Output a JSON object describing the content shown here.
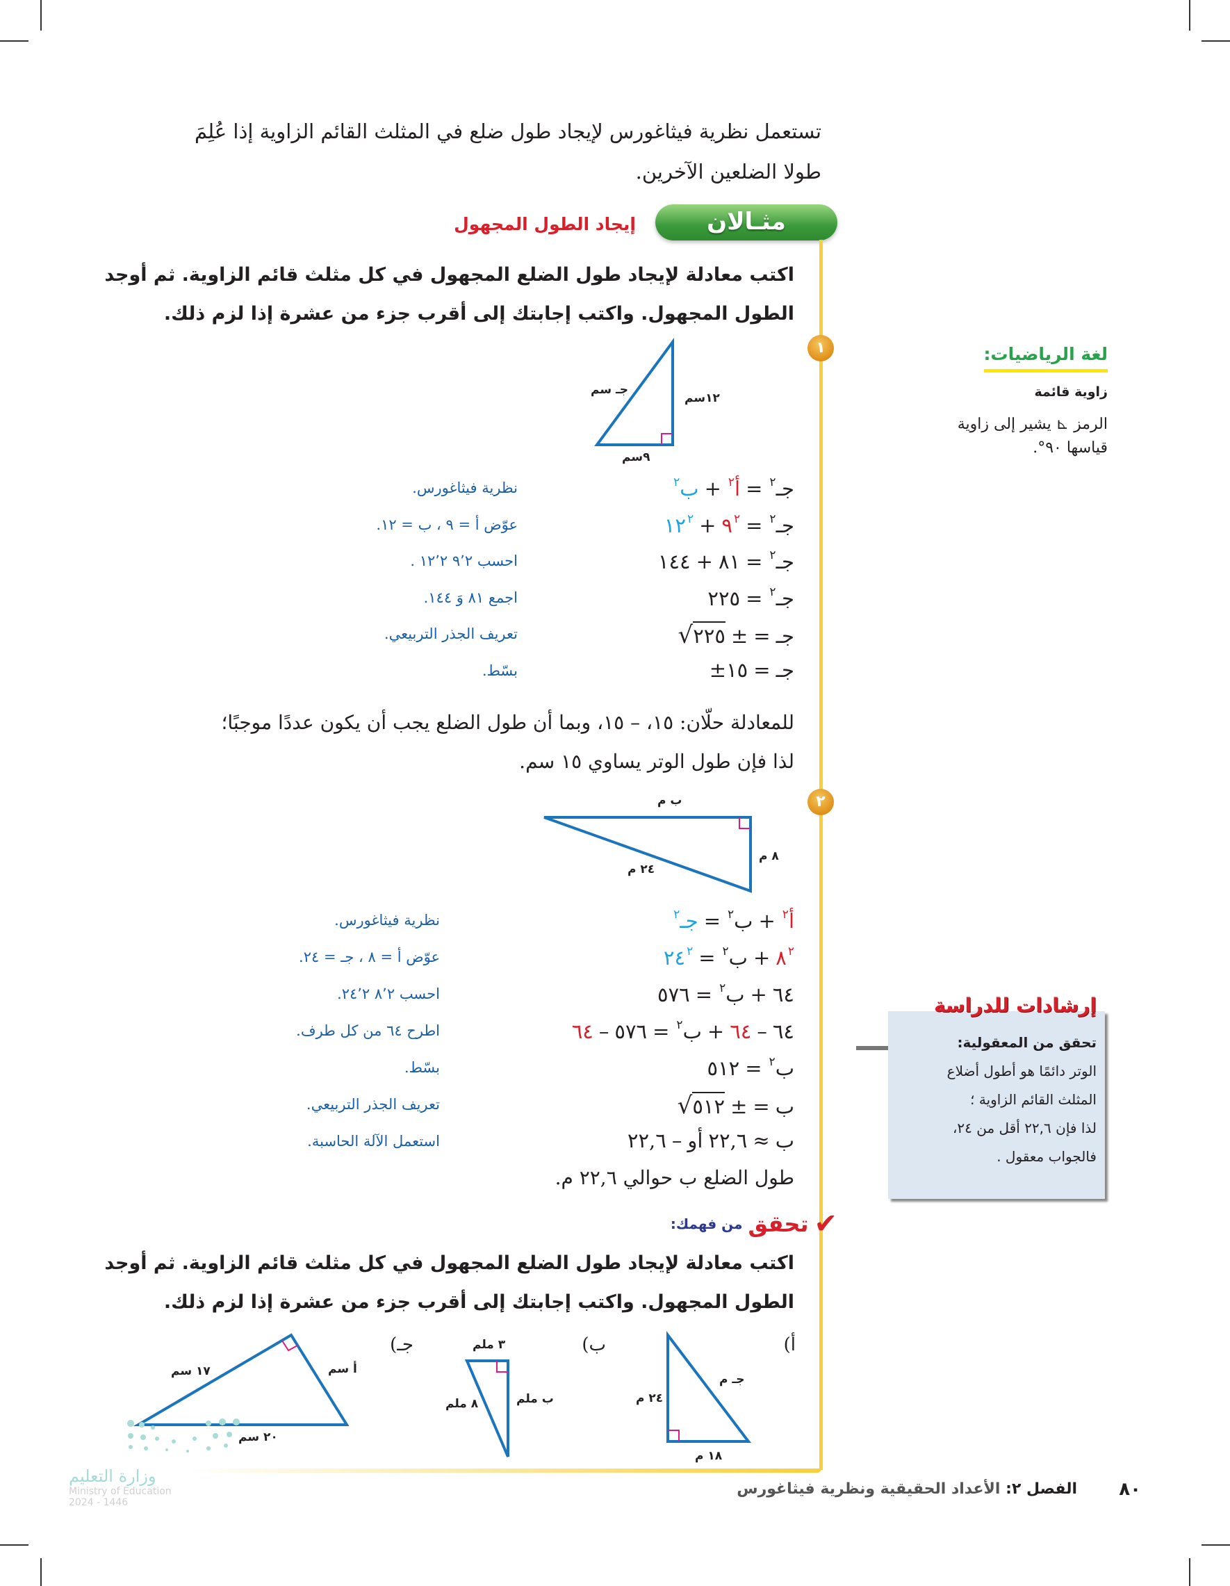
{
  "intro": {
    "line1": "تستعمل نظرية فيثاغورس لإيجاد طول ضلع في المثلث القائم الزاوية إذا عُلِمَ",
    "line2": "طولا الضلعين الآخرين."
  },
  "example": {
    "banner": "مثـالان",
    "title": "إيجاد الطول المجهول",
    "instruction_line1": "اكتب معادلة لإيجاد طول الضلع المجهول في كل مثلث قائم الزاوية. ثم أوجد",
    "instruction_line2": "الطول المجهول. واكتب إجابتك إلى أقرب جزء من عشرة إذا لزم ذلك."
  },
  "colors": {
    "red": "#d7202a",
    "cyan": "#1aa3e0",
    "reason_blue": "#1a5fa8",
    "triangle_blue": "#1b75bc",
    "right_angle_pink": "#e0188a",
    "rule_yellow": "#f7cf3b",
    "banner_green": "#3a9a3b"
  },
  "problem1": {
    "number": "١",
    "triangle_labels": {
      "hyp": "جـ سم",
      "vertical": "١٢سم",
      "base": "٩سم"
    },
    "steps": [
      {
        "eq": [
          {
            "t": "جـ",
            "s": "٢"
          },
          {
            "t": "="
          },
          {
            "t": "أ",
            "c": "red",
            "s": "٢"
          },
          {
            "t": "+"
          },
          {
            "t": "ب",
            "c": "cyan",
            "s": "٢"
          }
        ],
        "reason": "نظرية فيثاغورس."
      },
      {
        "eq": [
          {
            "t": "جـ",
            "s": "٢"
          },
          {
            "t": "="
          },
          {
            "t": "٩",
            "c": "red",
            "s": "٢"
          },
          {
            "t": "+"
          },
          {
            "t": "١٢",
            "c": "cyan",
            "s": "٢"
          }
        ],
        "reason": "عوّض أ = ٩ ، ب = ١٢."
      },
      {
        "eq": [
          {
            "t": "جـ",
            "s": "٢"
          },
          {
            "t": "="
          },
          {
            "t": "٨١"
          },
          {
            "t": "+"
          },
          {
            "t": "١٤٤"
          }
        ],
        "reason": "احسب ٩٬٢ ١٢٬٢ ."
      },
      {
        "eq": [
          {
            "t": "جـ",
            "s": "٢"
          },
          {
            "t": "="
          },
          {
            "t": "٢٢٥"
          }
        ],
        "reason": "اجمع ٨١ وَ ١٤٤."
      },
      {
        "eq": [
          {
            "t": "جـ"
          },
          {
            "t": "="
          },
          {
            "t": "±"
          },
          {
            "t": "٢٢٥",
            "sqrt": true
          }
        ],
        "reason": "تعريف الجذر التربيعي."
      },
      {
        "eq": [
          {
            "t": "جـ"
          },
          {
            "t": "="
          },
          {
            "t": "±١٥"
          }
        ],
        "reason": "بسّط."
      }
    ],
    "conclusion_line1": "للمعادلة حلّان: ١٥، – ١٥، وبما أن طول الضلع يجب أن يكون عددًا موجبًا؛",
    "conclusion_line2": "لذا فإن طول الوتر يساوي ١٥ سم."
  },
  "problem2": {
    "number": "٢",
    "triangle_labels": {
      "top": "ب م",
      "right": "٨ م",
      "hyp": "٢٤ م"
    },
    "steps": [
      {
        "eq": [
          {
            "t": "أ",
            "c": "red",
            "s": "٢"
          },
          {
            "t": "+"
          },
          {
            "t": "ب",
            "s": "٢"
          },
          {
            "t": "="
          },
          {
            "t": "جـ",
            "c": "cyan",
            "s": "٢"
          }
        ],
        "reason": "نظرية فيثاغورس."
      },
      {
        "eq": [
          {
            "t": "٨",
            "c": "red",
            "s": "٢"
          },
          {
            "t": "+"
          },
          {
            "t": "ب",
            "s": "٢"
          },
          {
            "t": "="
          },
          {
            "t": "٢٤",
            "c": "cyan",
            "s": "٢"
          }
        ],
        "reason": "عوّض أ = ٨ ، جـ = ٢٤."
      },
      {
        "eq": [
          {
            "t": "٦٤"
          },
          {
            "t": "+"
          },
          {
            "t": "ب",
            "s": "٢"
          },
          {
            "t": "="
          },
          {
            "t": "٥٧٦"
          }
        ],
        "reason": "احسب ٨٬٢ ٢٤٬٢."
      },
      {
        "eq": [
          {
            "t": "٦٤"
          },
          {
            "t": "–"
          },
          {
            "t": "٦٤",
            "c": "red"
          },
          {
            "t": "+"
          },
          {
            "t": "ب",
            "s": "٢"
          },
          {
            "t": "="
          },
          {
            "t": "٥٧٦"
          },
          {
            "t": "–"
          },
          {
            "t": "٦٤",
            "c": "red"
          }
        ],
        "reason": "اطرح ٦٤ من كل طرف."
      },
      {
        "eq": [
          {
            "t": "ب",
            "s": "٢"
          },
          {
            "t": "="
          },
          {
            "t": "٥١٢"
          }
        ],
        "reason": "بسّط."
      },
      {
        "eq": [
          {
            "t": "ب"
          },
          {
            "t": "="
          },
          {
            "t": "±"
          },
          {
            "t": "٥١٢",
            "sqrt": true
          }
        ],
        "reason": "تعريف الجذر التربيعي."
      },
      {
        "eq": [
          {
            "t": "ب"
          },
          {
            "t": "≈"
          },
          {
            "t": "٢٢,٦"
          },
          {
            "t": "أو"
          },
          {
            "t": "–"
          },
          {
            "t": "٢٢,٦"
          }
        ],
        "reason": "استعمل الآلة الحاسبة."
      }
    ],
    "conclusion": "طول الضلع ب حوالي ٢٢,٦ م."
  },
  "check": {
    "title_main": "تحقق",
    "title_sub": "من فهمك:",
    "instruction_line1": "اكتب معادلة لإيجاد طول الضلع المجهول في كل مثلث قائم الزاوية. ثم أوجد",
    "instruction_line2": "الطول المجهول. واكتب إجابتك إلى أقرب جزء من عشرة إذا لزم ذلك.",
    "exercises": [
      {
        "label": "أ)",
        "sides": {
          "hyp": "جـ م",
          "vertical": "٢٤ م",
          "base": "١٨ م"
        }
      },
      {
        "label": "ب)",
        "sides": {
          "top": "٣ ملم",
          "vertical": "ب ملم",
          "hyp": "٨ ملم"
        }
      },
      {
        "label": "جـ)",
        "sides": {
          "left": "١٧ سم",
          "right": "أ سم",
          "base": "٢٠ سم"
        }
      }
    ]
  },
  "sidebar": {
    "vocab_title": "لغة الرياضيات:",
    "term": "زاوية قائمة",
    "definition_line1": "الرمز ⊾ يشير إلى زاوية",
    "definition_line2": "قياسها ٩٠°."
  },
  "study_tips": {
    "title": "إرشادات للدراسة",
    "subtitle": "تحقق من المعقولية:",
    "lines": [
      "الوتر دائمًا هو أطول أضلاع",
      "المثلث القائم الزاوية ؛",
      "لذا فإن ٢٢,٦ أقل من ٢٤،",
      "فالجواب معقول ."
    ]
  },
  "footer": {
    "page_number": "٨٠",
    "chapter_label": "الفصل ٢:",
    "chapter_title": "الأعداد الحقيقية ونظرية فيثاغورس",
    "logo_ar": "وزارة التعليم",
    "logo_en": "Ministry of Education",
    "logo_year": "2024 - 1446"
  }
}
